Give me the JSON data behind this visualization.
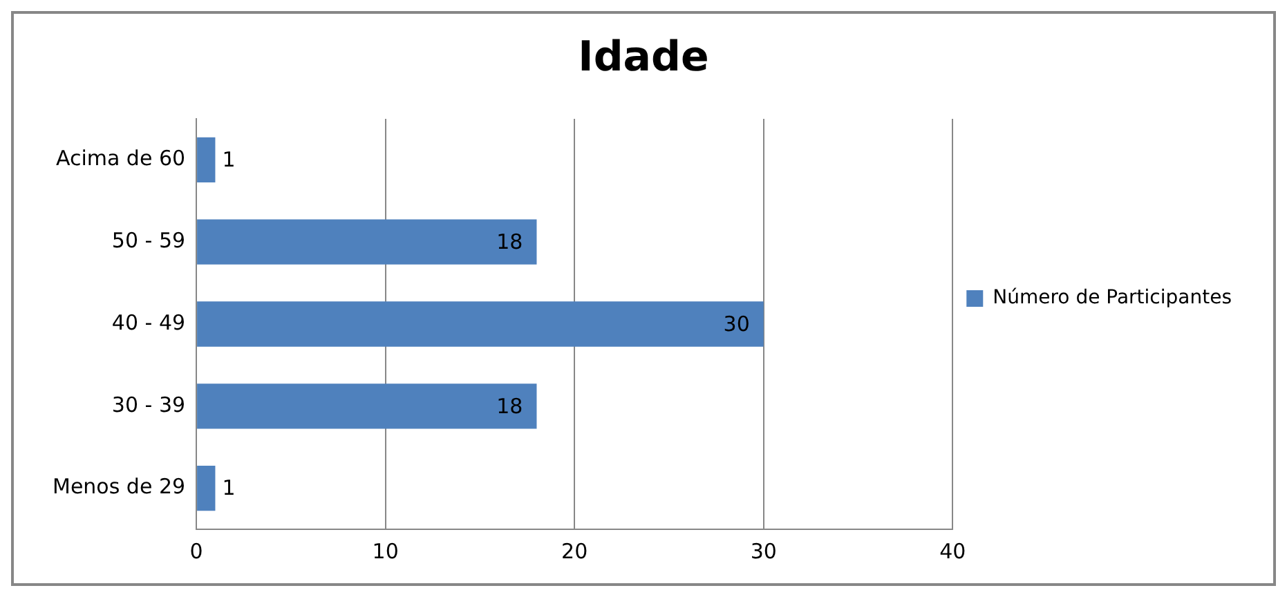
{
  "chart_data": {
    "type": "bar",
    "orientation": "horizontal",
    "title": "Idade",
    "categories": [
      "Acima de 60",
      "50 - 59",
      "40 - 49",
      "30 - 39",
      "Menos de 29"
    ],
    "series": [
      {
        "name": "Número de Participantes",
        "color": "#4f81bd",
        "values": [
          1,
          18,
          30,
          18,
          1
        ]
      }
    ],
    "xlim": [
      0,
      40
    ],
    "xticks": [
      0,
      10,
      20,
      30,
      40
    ],
    "grid": "x",
    "legend": "right",
    "data_labels": true
  }
}
